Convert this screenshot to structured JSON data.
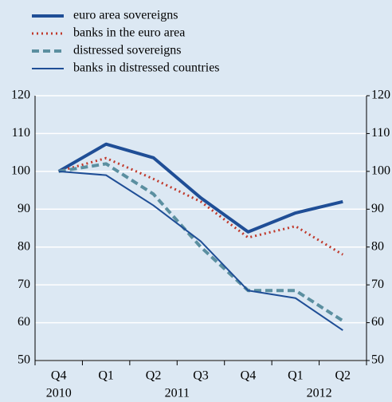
{
  "chart_data": {
    "type": "line",
    "categories": [
      "Q4",
      "Q1",
      "Q2",
      "Q3",
      "Q4",
      "Q1",
      "Q2"
    ],
    "year_labels": [
      "2010",
      "2011",
      "2012"
    ],
    "series": [
      {
        "name": "euro area sovereigns",
        "color": "#1f4e96",
        "style": "solid",
        "width": 4,
        "values": [
          100,
          107.2,
          103.6,
          93,
          84,
          89,
          92
        ]
      },
      {
        "name": "banks in the euro area",
        "color": "#c0392b",
        "style": "dotted",
        "width": 3,
        "values": [
          100,
          103.5,
          98,
          92,
          82.5,
          85.5,
          78
        ]
      },
      {
        "name": "distressed sovereigns",
        "color": "#5b8fa0",
        "style": "dashed",
        "width": 4,
        "values": [
          100,
          102,
          94,
          80,
          68.5,
          68.5,
          60.5
        ]
      },
      {
        "name": "banks in distressed countries",
        "color": "#1f4e96",
        "style": "solid",
        "width": 2,
        "values": [
          100,
          99,
          91,
          81.5,
          68.5,
          66.5,
          58
        ]
      }
    ],
    "ylim": [
      50,
      120
    ],
    "yticks": [
      50,
      60,
      70,
      80,
      90,
      100,
      110,
      120
    ],
    "y2lim": [
      50,
      120
    ],
    "y2ticks": [
      50,
      60,
      70,
      80,
      90,
      100,
      110,
      120
    ],
    "grid": true
  }
}
